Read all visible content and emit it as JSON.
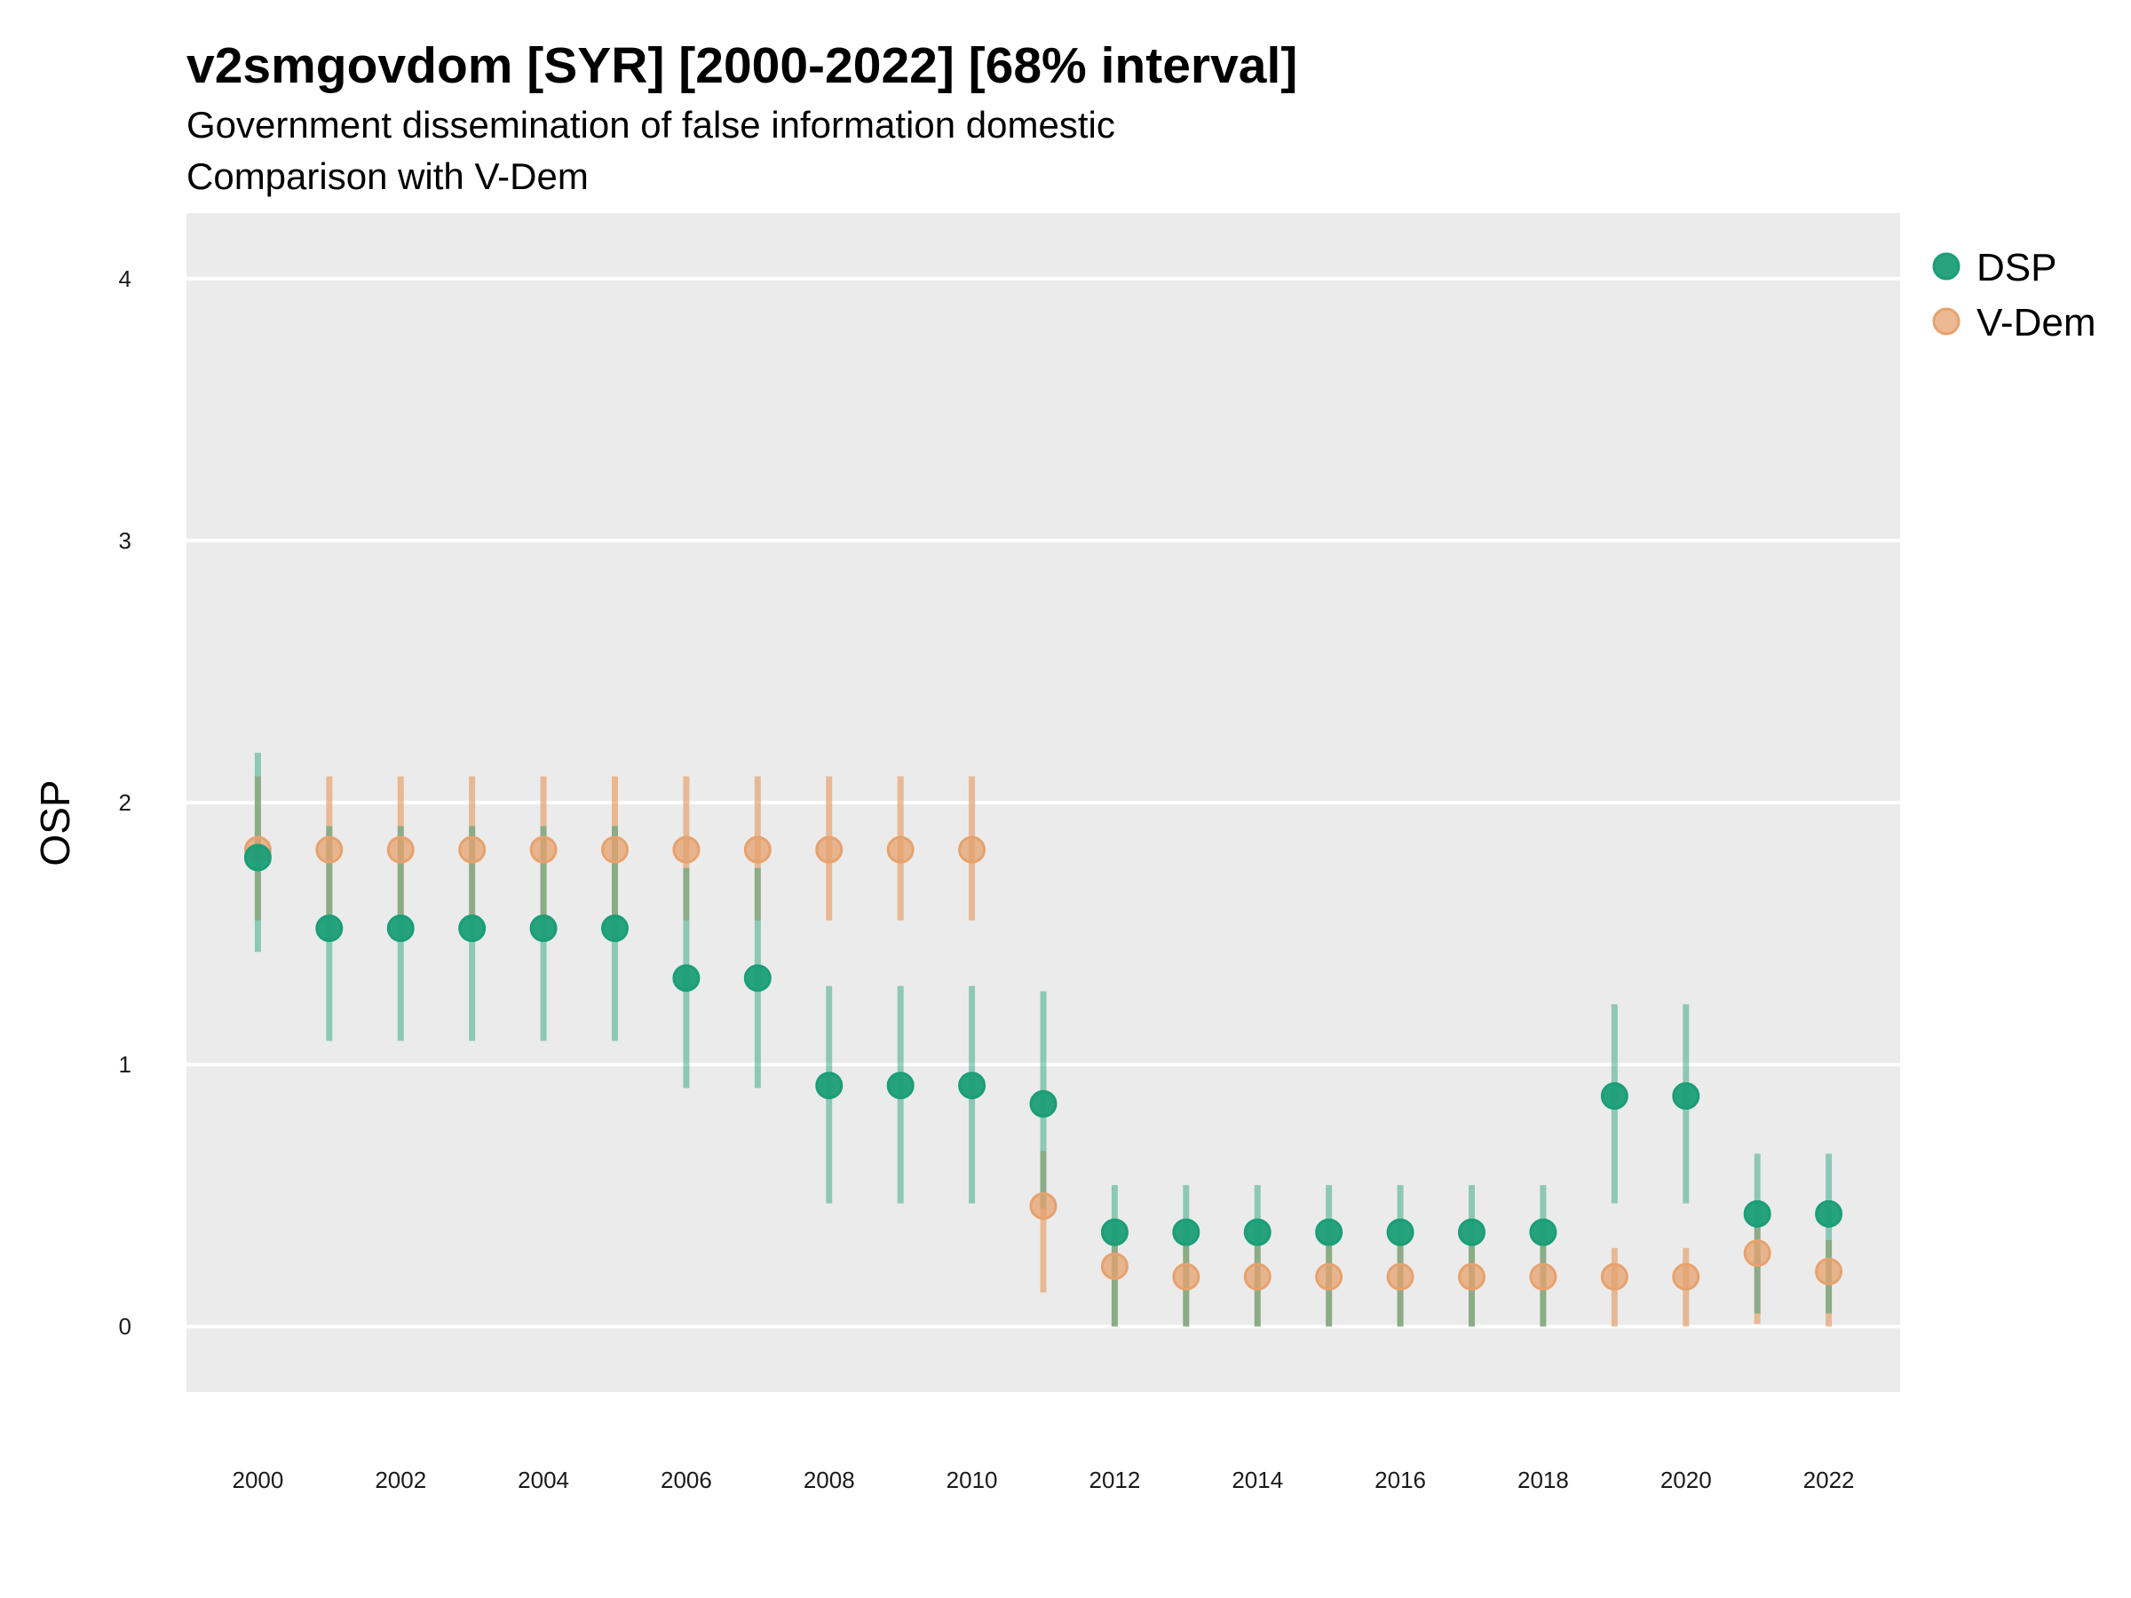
{
  "chart_data": {
    "type": "scatter",
    "title": "v2smgovdom [SYR] [2000-2022] [68% interval]",
    "subtitle": "Government dissemination of false information domestic",
    "subtitle2": "Comparison with V-Dem",
    "xlabel": "",
    "ylabel": "OSP",
    "ylim": [
      -0.25,
      4.25
    ],
    "xlim": [
      1999,
      2023
    ],
    "yticks": [
      0,
      1,
      2,
      3,
      4
    ],
    "xticks": [
      2000,
      2002,
      2004,
      2006,
      2008,
      2010,
      2012,
      2014,
      2016,
      2018,
      2020,
      2022
    ],
    "grid": true,
    "legend_position": "right-top",
    "colors": {
      "DSP": "#1b9e77",
      "V-Dem": "#e6a26e",
      "panel": "#ebebeb",
      "grid": "#ffffff"
    },
    "series": [
      {
        "name": "DSP",
        "x": [
          2000,
          2001,
          2002,
          2003,
          2004,
          2005,
          2006,
          2007,
          2008,
          2009,
          2010,
          2011,
          2012,
          2013,
          2014,
          2015,
          2016,
          2017,
          2018,
          2019,
          2020,
          2021,
          2022
        ],
        "values": [
          1.79,
          1.52,
          1.52,
          1.52,
          1.52,
          1.52,
          1.33,
          1.33,
          0.92,
          0.92,
          0.92,
          0.85,
          0.36,
          0.36,
          0.36,
          0.36,
          0.36,
          0.36,
          0.36,
          0.88,
          0.88,
          0.43,
          0.43
        ],
        "lower": [
          1.43,
          1.09,
          1.09,
          1.09,
          1.09,
          1.09,
          0.91,
          0.91,
          0.47,
          0.47,
          0.47,
          0.45,
          0.0,
          0.0,
          0.0,
          0.0,
          0.0,
          0.0,
          0.0,
          0.47,
          0.47,
          0.05,
          0.05
        ],
        "upper": [
          2.19,
          1.91,
          1.91,
          1.91,
          1.91,
          1.91,
          1.75,
          1.75,
          1.3,
          1.3,
          1.3,
          1.28,
          0.54,
          0.54,
          0.54,
          0.54,
          0.54,
          0.54,
          0.54,
          1.23,
          1.23,
          0.66,
          0.66
        ]
      },
      {
        "name": "V-Dem",
        "x": [
          2000,
          2001,
          2002,
          2003,
          2004,
          2005,
          2006,
          2007,
          2008,
          2009,
          2010,
          2011,
          2012,
          2013,
          2014,
          2015,
          2016,
          2017,
          2018,
          2019,
          2020,
          2021,
          2022
        ],
        "values": [
          1.82,
          1.82,
          1.82,
          1.82,
          1.82,
          1.82,
          1.82,
          1.82,
          1.82,
          1.82,
          1.82,
          0.46,
          0.23,
          0.19,
          0.19,
          0.19,
          0.19,
          0.19,
          0.19,
          0.19,
          0.19,
          0.28,
          0.21
        ],
        "lower": [
          1.55,
          1.55,
          1.55,
          1.55,
          1.55,
          1.55,
          1.55,
          1.55,
          1.55,
          1.55,
          1.55,
          0.13,
          0.0,
          0.0,
          0.0,
          0.0,
          0.0,
          0.0,
          0.0,
          0.0,
          0.0,
          0.01,
          0.0
        ],
        "upper": [
          2.1,
          2.1,
          2.1,
          2.1,
          2.1,
          2.1,
          2.1,
          2.1,
          2.1,
          2.1,
          2.1,
          0.67,
          0.39,
          0.32,
          0.32,
          0.32,
          0.32,
          0.32,
          0.32,
          0.3,
          0.3,
          0.4,
          0.33
        ]
      }
    ]
  }
}
